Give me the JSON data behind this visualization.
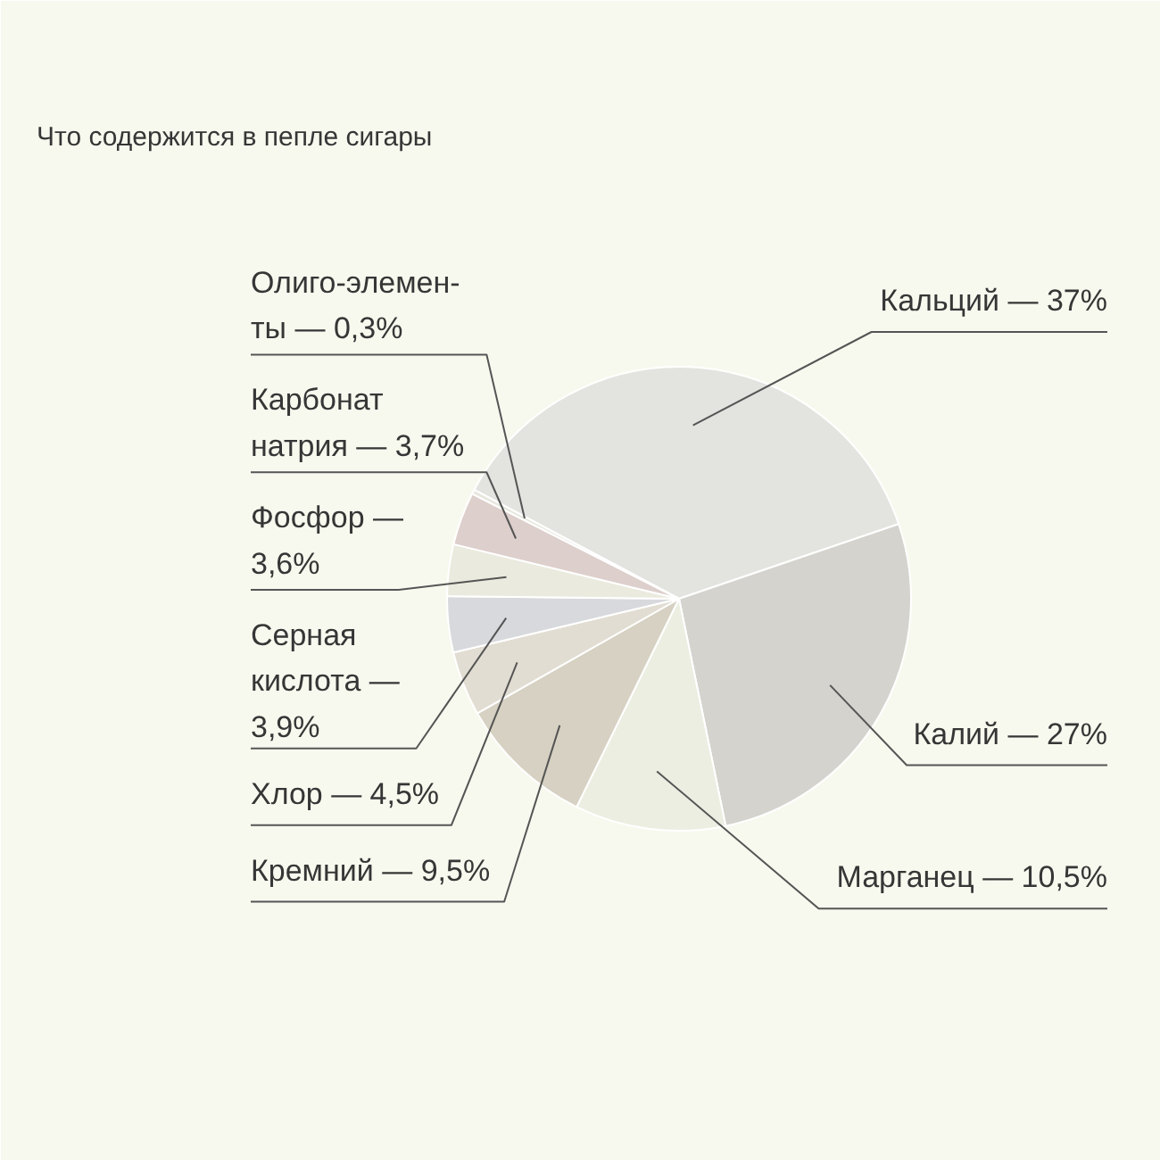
{
  "chart_data": {
    "type": "pie",
    "title": "Что содержится в пепле сигары",
    "categories": [
      "Кальций — 37%",
      "Калий — 27%",
      "Марганец — 10,5%",
      "Кремний — 9,5%",
      "Хлор — 4,5%",
      "Серная\nкислота —\n3,9%",
      "Фосфор —\n3,6%",
      "Карбонат\nнатрия — 3,7%",
      "Олиго-элемен-\nты — 0,3%"
    ],
    "values": [
      37,
      27,
      10.5,
      9.5,
      4.5,
      3.9,
      3.6,
      3.7,
      0.3
    ],
    "colors": [
      "#e3e4e0",
      "#d5d3ce",
      "#eceee2",
      "#d6d1c2",
      "#e2ddd2",
      "#d8d9dc",
      "#ebeade",
      "#ddcfcc",
      "#e7e7de"
    ]
  }
}
